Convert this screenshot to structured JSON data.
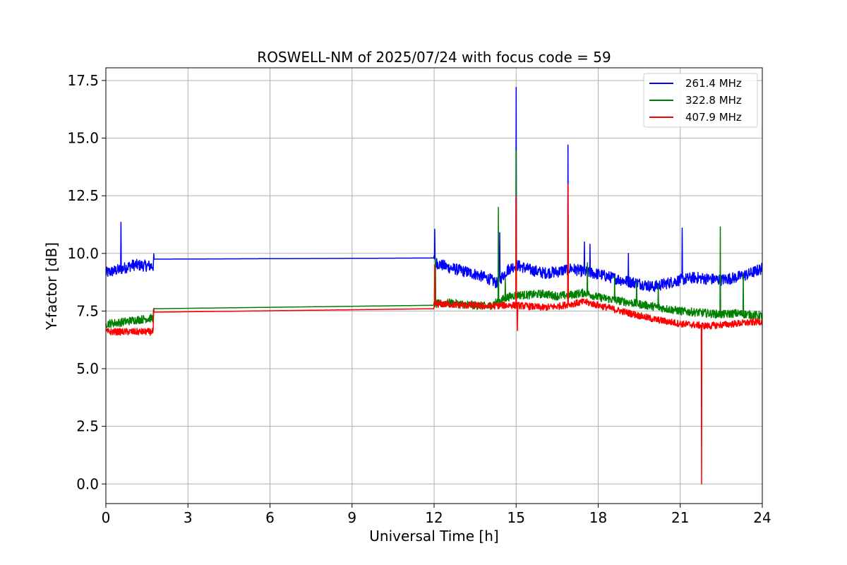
{
  "chart_data": {
    "type": "line",
    "title": "ROSWELL-NM of 2025/07/24 with focus code = 59",
    "xlabel": "Universal Time [h]",
    "ylabel": "Y-factor [dB]",
    "xlim": [
      0,
      24
    ],
    "ylim": [
      -0.85,
      18.05
    ],
    "xticks": [
      0,
      3,
      6,
      9,
      12,
      15,
      18,
      21,
      24
    ],
    "xtick_labels": [
      "0",
      "3",
      "6",
      "9",
      "12",
      "15",
      "18",
      "21",
      "24"
    ],
    "yticks": [
      0.0,
      2.5,
      5.0,
      7.5,
      10.0,
      12.5,
      15.0,
      17.5
    ],
    "ytick_labels": [
      "0.0",
      "2.5",
      "5.0",
      "7.5",
      "10.0",
      "12.5",
      "15.0",
      "17.5"
    ],
    "grid": true,
    "legend_position": "top-right",
    "series": [
      {
        "name": "261.4 MHz",
        "color": "#0000ff",
        "noise": 0.25,
        "points": [
          [
            0,
            9.15
          ],
          [
            0.5,
            9.3
          ],
          [
            1.0,
            9.5
          ],
          [
            1.73,
            9.45
          ],
          [
            1.75,
            9.75
          ],
          [
            12.0,
            9.8
          ],
          [
            12.05,
            9.6
          ],
          [
            12.5,
            9.4
          ],
          [
            13.0,
            9.25
          ],
          [
            13.5,
            9.1
          ],
          [
            14.0,
            8.9
          ],
          [
            14.3,
            8.7
          ],
          [
            14.7,
            9.3
          ],
          [
            15.0,
            9.5
          ],
          [
            15.5,
            9.3
          ],
          [
            16.0,
            9.15
          ],
          [
            16.5,
            9.2
          ],
          [
            17.0,
            9.35
          ],
          [
            17.5,
            9.2
          ],
          [
            18.0,
            9.1
          ],
          [
            18.5,
            8.95
          ],
          [
            19.0,
            8.8
          ],
          [
            19.5,
            8.7
          ],
          [
            20.0,
            8.55
          ],
          [
            20.5,
            8.7
          ],
          [
            21.0,
            8.85
          ],
          [
            21.5,
            8.95
          ],
          [
            22.0,
            8.9
          ],
          [
            22.5,
            8.85
          ],
          [
            23.0,
            8.95
          ],
          [
            23.5,
            9.1
          ],
          [
            24.0,
            9.35
          ]
        ],
        "spikes": [
          [
            0.55,
            11.35
          ],
          [
            12.02,
            11.05
          ],
          [
            14.4,
            10.9
          ],
          [
            15.0,
            17.2
          ],
          [
            16.9,
            14.7
          ],
          [
            17.5,
            10.5
          ],
          [
            17.7,
            10.4
          ],
          [
            19.1,
            10.0
          ],
          [
            21.07,
            11.1
          ]
        ]
      },
      {
        "name": "322.8 MHz",
        "color": "#008000",
        "noise": 0.18,
        "points": [
          [
            0,
            6.95
          ],
          [
            0.5,
            7.0
          ],
          [
            1.0,
            7.1
          ],
          [
            1.73,
            7.2
          ],
          [
            1.75,
            7.6
          ],
          [
            12.0,
            7.75
          ],
          [
            12.05,
            7.8
          ],
          [
            12.5,
            7.85
          ],
          [
            13.0,
            7.8
          ],
          [
            13.5,
            7.75
          ],
          [
            14.0,
            7.7
          ],
          [
            14.3,
            7.9
          ],
          [
            14.7,
            8.1
          ],
          [
            15.0,
            8.2
          ],
          [
            15.5,
            8.2
          ],
          [
            16.0,
            8.25
          ],
          [
            16.5,
            8.15
          ],
          [
            17.0,
            8.2
          ],
          [
            17.5,
            8.3
          ],
          [
            18.0,
            8.1
          ],
          [
            18.5,
            8.0
          ],
          [
            19.0,
            7.9
          ],
          [
            19.5,
            7.8
          ],
          [
            20.0,
            7.7
          ],
          [
            20.5,
            7.6
          ],
          [
            21.0,
            7.5
          ],
          [
            21.5,
            7.45
          ],
          [
            22.0,
            7.4
          ],
          [
            22.5,
            7.35
          ],
          [
            23.0,
            7.4
          ],
          [
            23.5,
            7.35
          ],
          [
            24.0,
            7.3
          ]
        ],
        "spikes": [
          [
            12.05,
            9.8
          ],
          [
            14.35,
            12.0
          ],
          [
            14.6,
            8.9
          ],
          [
            15.0,
            14.45
          ],
          [
            16.9,
            12.5
          ],
          [
            17.6,
            9.6
          ],
          [
            18.6,
            9.0
          ],
          [
            19.4,
            8.8
          ],
          [
            20.2,
            8.6
          ],
          [
            22.47,
            11.15
          ],
          [
            23.3,
            9.1
          ]
        ]
      },
      {
        "name": "407.9 MHz",
        "color": "#ff0000",
        "noise": 0.15,
        "points": [
          [
            0,
            6.6
          ],
          [
            0.5,
            6.6
          ],
          [
            1.0,
            6.6
          ],
          [
            1.73,
            6.6
          ],
          [
            1.75,
            7.45
          ],
          [
            12.0,
            7.6
          ],
          [
            12.05,
            7.8
          ],
          [
            12.5,
            7.8
          ],
          [
            13.0,
            7.75
          ],
          [
            13.5,
            7.75
          ],
          [
            14.0,
            7.7
          ],
          [
            14.5,
            7.75
          ],
          [
            15.0,
            7.75
          ],
          [
            15.5,
            7.7
          ],
          [
            16.0,
            7.65
          ],
          [
            16.5,
            7.7
          ],
          [
            17.0,
            7.8
          ],
          [
            17.5,
            7.9
          ],
          [
            18.0,
            7.75
          ],
          [
            18.5,
            7.6
          ],
          [
            19.0,
            7.45
          ],
          [
            19.5,
            7.3
          ],
          [
            20.0,
            7.15
          ],
          [
            20.5,
            7.05
          ],
          [
            21.0,
            6.95
          ],
          [
            21.5,
            6.9
          ],
          [
            22.0,
            6.85
          ],
          [
            22.5,
            6.9
          ],
          [
            23.0,
            6.95
          ],
          [
            23.5,
            7.0
          ],
          [
            24.0,
            7.05
          ]
        ],
        "spikes": [
          [
            12.02,
            9.5
          ],
          [
            15.0,
            12.5
          ],
          [
            15.05,
            6.65
          ],
          [
            16.9,
            13.0
          ],
          [
            21.78,
            0.0
          ]
        ]
      }
    ]
  }
}
